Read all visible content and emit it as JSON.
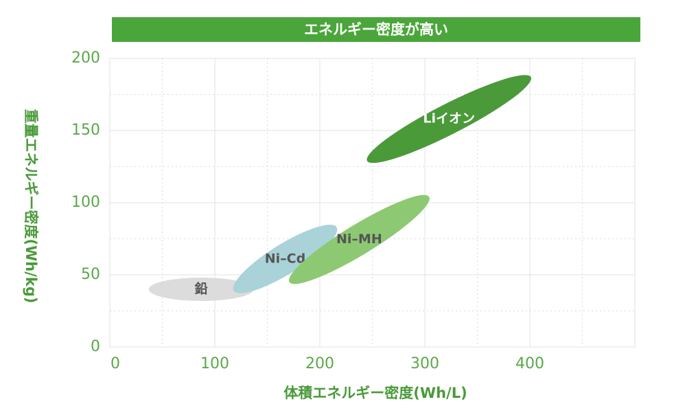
{
  "chart_data": {
    "type": "region",
    "title": "エネルギー密度が高い",
    "title_color": "#4aa63a",
    "x_label": "体積エネルギー密度(Wh/L)",
    "y_label": "重量エネルギー密度(Wh/kg)",
    "xlim": [
      0,
      500
    ],
    "xticks": [
      0,
      100,
      200,
      300,
      400
    ],
    "xminor": [
      50,
      150,
      250,
      350,
      450
    ],
    "ylim": [
      0,
      200
    ],
    "yticks": [
      0,
      50,
      100,
      150,
      200
    ],
    "yminor": [
      25,
      75,
      125,
      175
    ],
    "grid": true,
    "series": [
      {
        "name": "鉛",
        "color": "#dcdcdc",
        "label_color": "#555555",
        "x": [
          37,
          137
        ],
        "y": [
          40,
          40
        ]
      },
      {
        "name": "Ni–Cd",
        "color": "#a9d3d8",
        "label_color": "#555555",
        "x": [
          118,
          216
        ],
        "y": [
          39,
          83
        ]
      },
      {
        "name": "Ni–MH",
        "color": "#8dc972",
        "label_color": "#555555",
        "x": [
          171,
          304
        ],
        "y": [
          45,
          104
        ]
      },
      {
        "name": "Liイオン",
        "color": "#4a9a3a",
        "label_color": "#ffffff",
        "x": [
          245,
          401
        ],
        "y": [
          129,
          187
        ]
      }
    ]
  }
}
